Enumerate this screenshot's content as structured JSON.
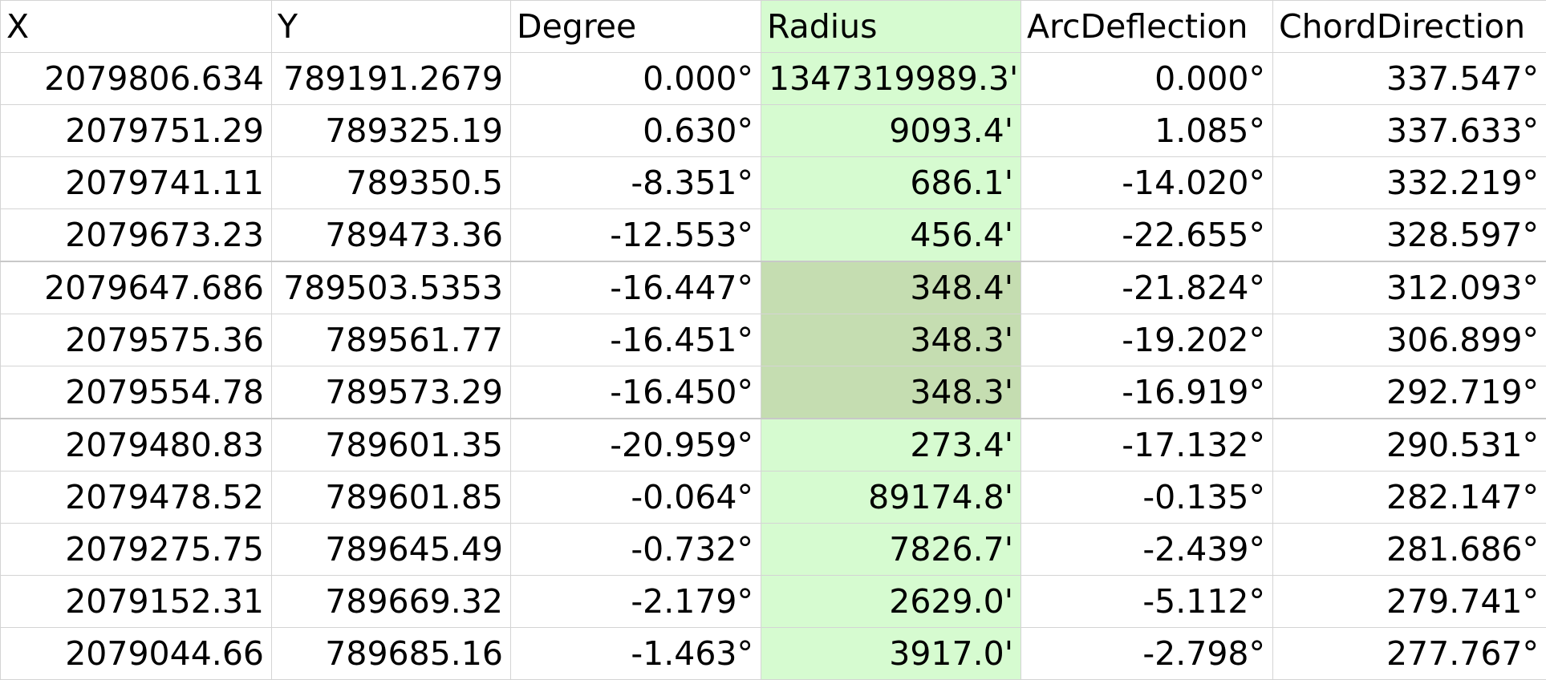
{
  "sheet": {
    "columns": [
      "X",
      "Y",
      "Degree",
      "Radius",
      "ArcDeflection",
      "ChordDirection"
    ],
    "highlight_colors": {
      "radius_column": "#d6fbd0",
      "selected_radius_cells": "#c5ddb1"
    },
    "rows": [
      [
        "2079806.634",
        "789191.2679",
        "0.000°",
        "1347319989.3'",
        "0.000°",
        "337.547°"
      ],
      [
        "2079751.29",
        "789325.19",
        "0.630°",
        "9093.4'",
        "1.085°",
        "337.633°"
      ],
      [
        "2079741.11",
        "789350.5",
        "-8.351°",
        "686.1'",
        "-14.020°",
        "332.219°"
      ],
      [
        "2079673.23",
        "789473.36",
        "-12.553°",
        "456.4'",
        "-22.655°",
        "328.597°"
      ],
      [
        "2079647.686",
        "789503.5353",
        "-16.447°",
        "348.4'",
        "-21.824°",
        "312.093°"
      ],
      [
        "2079575.36",
        "789561.77",
        "-16.451°",
        "348.3'",
        "-19.202°",
        "306.899°"
      ],
      [
        "2079554.78",
        "789573.29",
        "-16.450°",
        "348.3'",
        "-16.919°",
        "292.719°"
      ],
      [
        "2079480.83",
        "789601.35",
        "-20.959°",
        "273.4'",
        "-17.132°",
        "290.531°"
      ],
      [
        "2079478.52",
        "789601.85",
        "-0.064°",
        "89174.8'",
        "-0.135°",
        "282.147°"
      ],
      [
        "2079275.75",
        "789645.49",
        "-0.732°",
        "7826.7'",
        "-2.439°",
        "281.686°"
      ],
      [
        "2079152.31",
        "789669.32",
        "-2.179°",
        "2629.0'",
        "-5.112°",
        "279.741°"
      ],
      [
        "2079044.66",
        "789685.16",
        "-1.463°",
        "3917.0'",
        "-2.798°",
        "277.767°"
      ]
    ]
  }
}
